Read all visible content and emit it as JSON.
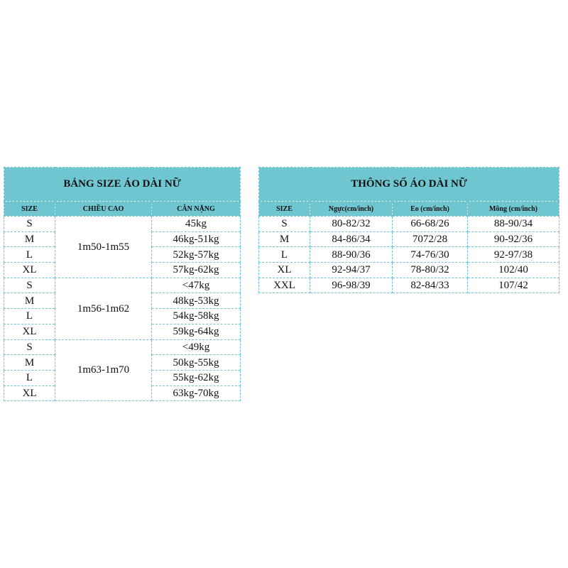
{
  "size_chart": {
    "title": "BẢNG SIZE ÁO DÀI NỮ",
    "headers": [
      "SIZE",
      "CHIỀU CAO",
      "CÂN NẶNG"
    ],
    "groups": [
      {
        "height": "1m50-1m55",
        "rows": [
          [
            "S",
            "45kg"
          ],
          [
            "M",
            "46kg-51kg"
          ],
          [
            "L",
            "52kg-57kg"
          ],
          [
            "XL",
            "57kg-62kg"
          ]
        ]
      },
      {
        "height": "1m56-1m62",
        "rows": [
          [
            "S",
            "<47kg"
          ],
          [
            "M",
            "48kg-53kg"
          ],
          [
            "L",
            "54kg-58kg"
          ],
          [
            "XL",
            "59kg-64kg"
          ]
        ]
      },
      {
        "height": "1m63-1m70",
        "rows": [
          [
            "S",
            "<49kg"
          ],
          [
            "M",
            "50kg-55kg"
          ],
          [
            "L",
            "55kg-62kg"
          ],
          [
            "XL",
            "63kg-70kg"
          ]
        ]
      }
    ]
  },
  "spec_chart": {
    "title": "THÔNG SỐ ÁO DÀI NỮ",
    "headers": [
      "SIZE",
      "Ngực(cm/inch)",
      "Eo (cm/inch)",
      "Mông (cm/inch)"
    ],
    "rows": [
      [
        "S",
        "80-82/32",
        "66-68/26",
        "88-90/34"
      ],
      [
        "M",
        "84-86/34",
        "7072/28",
        "90-92/36"
      ],
      [
        "L",
        "88-90/36",
        "74-76/30",
        "92-97/38"
      ],
      [
        "XL",
        "92-94/37",
        "78-80/32",
        "102/40"
      ],
      [
        "XXL",
        "96-98/39",
        "82-84/33",
        "107/42"
      ]
    ]
  },
  "colors": {
    "accent": "#6fc6d0"
  }
}
